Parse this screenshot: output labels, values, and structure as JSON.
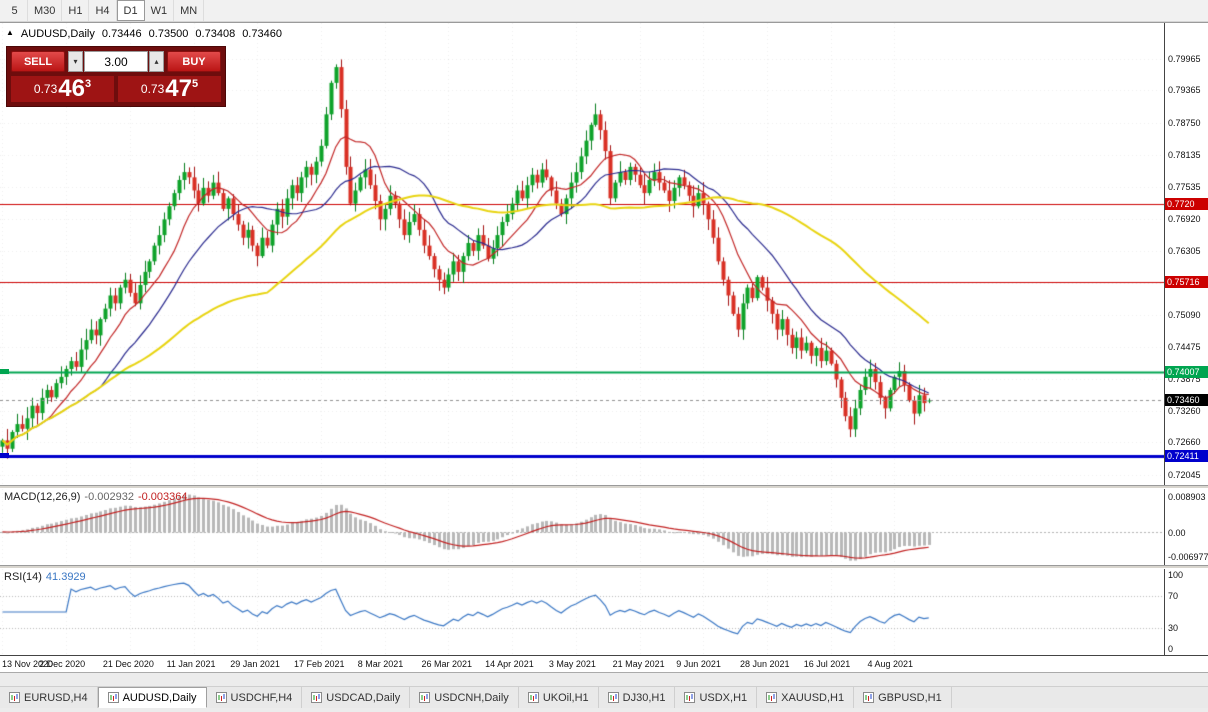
{
  "colors": {
    "up": "#0ea32a",
    "up_border": "#067d1d",
    "down": "#d93025",
    "down_border": "#a31212",
    "ma_fast": "#c22727",
    "ma_mid": "#2b2b8f",
    "ma_slow": "#e8d411",
    "hist": "#b8b8b8",
    "macd_signal": "#c22222",
    "rsi_line": "#3a77c4",
    "grid": "rgba(0,0,0,0.07)"
  },
  "toolbar": {
    "timeframes": [
      {
        "label": "5",
        "active": false
      },
      {
        "label": "M30",
        "active": false
      },
      {
        "label": "H1",
        "active": false
      },
      {
        "label": "H4",
        "active": false
      },
      {
        "label": "D1",
        "active": true
      },
      {
        "label": "W1",
        "active": false
      },
      {
        "label": "MN",
        "active": false
      }
    ]
  },
  "symbol_header": {
    "collapse_icon": "▲",
    "symbol": "AUDUSD,Daily",
    "open": "0.73446",
    "high": "0.73500",
    "low": "0.73408",
    "close": "0.73460"
  },
  "trade_panel": {
    "sell_label": "SELL",
    "buy_label": "BUY",
    "volume": "3.00",
    "volume_down_icon": "▾",
    "volume_up_icon": "▴",
    "bid_prefix": "0.73",
    "bid_main": "46",
    "bid_sup": "3",
    "ask_prefix": "0.73",
    "ask_main": "47",
    "ask_sup": "5"
  },
  "chart_data": {
    "type": "candlestick",
    "title": "AUDUSD,Daily",
    "x_labels": [
      "13 Nov 2020",
      "2 Dec 2020",
      "21 Dec 2020",
      "11 Jan 2021",
      "29 Jan 2021",
      "17 Feb 2021",
      "8 Mar 2021",
      "26 Mar 2021",
      "14 Apr 2021",
      "3 May 2021",
      "21 May 2021",
      "9 Jun 2021",
      "28 Jun 2021",
      "16 Jul 2021",
      "4 Aug 2021"
    ],
    "bars_per_label": 13,
    "right_shift_ratio": 0.2,
    "closes": [
      0.727,
      0.7254,
      0.7286,
      0.7301,
      0.7292,
      0.7312,
      0.7336,
      0.7322,
      0.7351,
      0.7366,
      0.7352,
      0.7379,
      0.7391,
      0.7406,
      0.7421,
      0.741,
      0.7443,
      0.7461,
      0.7481,
      0.747,
      0.7501,
      0.7521,
      0.7546,
      0.7531,
      0.7561,
      0.7576,
      0.7551,
      0.7531,
      0.7566,
      0.7591,
      0.7611,
      0.7641,
      0.7661,
      0.7691,
      0.7716,
      0.7741,
      0.7766,
      0.7781,
      0.7771,
      0.7746,
      0.7721,
      0.7751,
      0.7736,
      0.7761,
      0.7741,
      0.7711,
      0.7731,
      0.7701,
      0.7681,
      0.7656,
      0.7671,
      0.7641,
      0.7621,
      0.7656,
      0.7641,
      0.7681,
      0.7711,
      0.7696,
      0.7731,
      0.7756,
      0.7741,
      0.7771,
      0.7791,
      0.7776,
      0.7801,
      0.7831,
      0.7891,
      0.7951,
      0.7981,
      0.7901,
      0.7791,
      0.7721,
      0.7746,
      0.7771,
      0.7786,
      0.7756,
      0.7726,
      0.7691,
      0.7711,
      0.7736,
      0.7721,
      0.7691,
      0.7661,
      0.7686,
      0.7701,
      0.7671,
      0.7641,
      0.7621,
      0.7596,
      0.7576,
      0.7561,
      0.7586,
      0.7611,
      0.7591,
      0.7621,
      0.7646,
      0.7631,
      0.7661,
      0.7641,
      0.7616,
      0.7636,
      0.7661,
      0.7686,
      0.7701,
      0.7721,
      0.7746,
      0.7731,
      0.7756,
      0.7776,
      0.7761,
      0.7786,
      0.7771,
      0.7746,
      0.7721,
      0.7701,
      0.7731,
      0.7761,
      0.7781,
      0.7811,
      0.7841,
      0.7871,
      0.7891,
      0.7861,
      0.7821,
      0.7731,
      0.7761,
      0.7781,
      0.7766,
      0.7791,
      0.7776,
      0.7756,
      0.7741,
      0.7766,
      0.7781,
      0.7761,
      0.7746,
      0.7726,
      0.7751,
      0.7771,
      0.7756,
      0.7736,
      0.7716,
      0.7741,
      0.7721,
      0.7691,
      0.7656,
      0.7611,
      0.7576,
      0.7546,
      0.7511,
      0.7481,
      0.7531,
      0.7561,
      0.7541,
      0.7581,
      0.7561,
      0.7536,
      0.7511,
      0.7481,
      0.7501,
      0.7471,
      0.7446,
      0.7466,
      0.7441,
      0.7456,
      0.7431,
      0.7446,
      0.7421,
      0.7441,
      0.7416,
      0.7386,
      0.7351,
      0.7316,
      0.7291,
      0.7331,
      0.7366,
      0.7391,
      0.7406,
      0.7381,
      0.7351,
      0.7331,
      0.7366,
      0.7391,
      0.7402,
      0.7376,
      0.7346,
      0.7321,
      0.7356,
      0.7341,
      0.7346
    ],
    "last_ohlc": {
      "open": 0.73446,
      "high": 0.735,
      "low": 0.73408,
      "close": 0.7346
    },
    "price_axis_ticks": [
      "0.79965",
      "0.79365",
      "0.78750",
      "0.78135",
      "0.77535",
      "0.76920",
      "0.76305",
      "0.75690",
      "0.75090",
      "0.74475",
      "0.73875",
      "0.73260",
      "0.72660",
      "0.72045"
    ],
    "price_range": {
      "top": 0.8065,
      "bottom": 0.7185
    },
    "moving_averages": [
      {
        "period": 10,
        "color_key": "ma_fast",
        "width": 1.2
      },
      {
        "period": 21,
        "color_key": "ma_mid",
        "width": 1.2
      },
      {
        "period": 55,
        "color_key": "ma_slow",
        "width": 2
      }
    ],
    "hlines": [
      {
        "value": 0.772,
        "label": "0.7720",
        "color": "#cc0000",
        "width": 1
      },
      {
        "value": 0.75716,
        "label": "0.75716",
        "color": "#cc0000",
        "width": 1
      },
      {
        "value": 0.74007,
        "label": "0.74007",
        "color": "#00a550",
        "width": 2
      },
      {
        "value": 0.72411,
        "label": "0.72411",
        "color": "#0000cc",
        "width": 3
      }
    ],
    "bid_line": {
      "value": 0.7346,
      "label": "0.73460",
      "tag_bg": "#000000"
    },
    "macd": {
      "label": "MACD(12,26,9)",
      "value_main": "-0.002932",
      "value_signal": "-0.003364",
      "fast": 12,
      "slow": 26,
      "signal": 9,
      "y_ticks": [
        "0.008903",
        "0.00",
        "-0.006977"
      ]
    },
    "rsi": {
      "label": "RSI(14)",
      "value": "41.3929",
      "period": 14,
      "y_ticks": [
        "100",
        "70",
        "30",
        "0"
      ],
      "levels": [
        70,
        30
      ]
    }
  },
  "tabbar": {
    "tabs": [
      {
        "label": "EURUSD,H4",
        "active": false
      },
      {
        "label": "AUDUSD,Daily",
        "active": true
      },
      {
        "label": "USDCHF,H4",
        "active": false
      },
      {
        "label": "USDCAD,Daily",
        "active": false
      },
      {
        "label": "USDCNH,Daily",
        "active": false
      },
      {
        "label": "UKOil,H1",
        "active": false
      },
      {
        "label": "DJ30,H1",
        "active": false
      },
      {
        "label": "USDX,H1",
        "active": false
      },
      {
        "label": "XAUUSD,H1",
        "active": false
      },
      {
        "label": "GBPUSD,H1",
        "active": false
      }
    ]
  }
}
